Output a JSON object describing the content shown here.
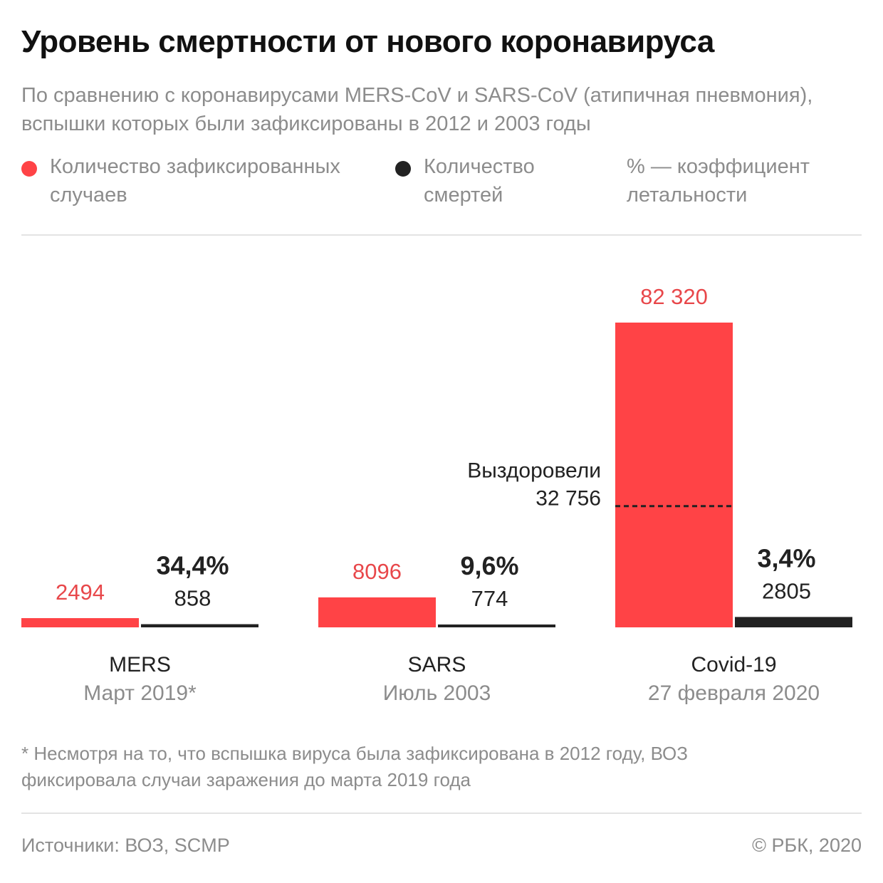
{
  "title": "Уровень смертности от нового коронавируса",
  "subtitle": "По сравнению с коронавирусами MERS-CoV и SARS-CoV (атипичная пневмония), вспышки которых были зафиксированы в 2012 и 2003 годы",
  "legend": {
    "cases": "Количество зафиксированных случаев",
    "deaths": "Количество смертей",
    "rate": "% — коэффициент летальности"
  },
  "colors": {
    "cases": "#ff4346",
    "deaths": "#222222",
    "cases_text": "#e8474a"
  },
  "chart_data": {
    "type": "bar",
    "categories": [
      "MERS",
      "SARS",
      "Covid-19"
    ],
    "category_dates": [
      "Март 2019*",
      "Июль 2003",
      "27 февраля 2020"
    ],
    "series": [
      {
        "name": "Количество зафиксированных случаев",
        "values": [
          2494,
          8096,
          82320
        ],
        "labels": [
          "2494",
          "8096",
          "82 320"
        ]
      },
      {
        "name": "Количество смертей",
        "values": [
          858,
          774,
          2805
        ],
        "labels": [
          "858",
          "774",
          "2805"
        ]
      }
    ],
    "fatality_rate": [
      "34,4%",
      "9,6%",
      "3,4%"
    ],
    "annotation": {
      "category": "Covid-19",
      "label": "Выздоровели",
      "value": 32756,
      "value_label": "32 756"
    }
  },
  "footnote": "* Несмотря на то, что вспышка вируса была зафиксирована в 2012 году, ВОЗ фиксировала случаи заражения до марта 2019 года",
  "source": "Источники: ВОЗ, SCMP",
  "copyright": "© РБК, 2020"
}
